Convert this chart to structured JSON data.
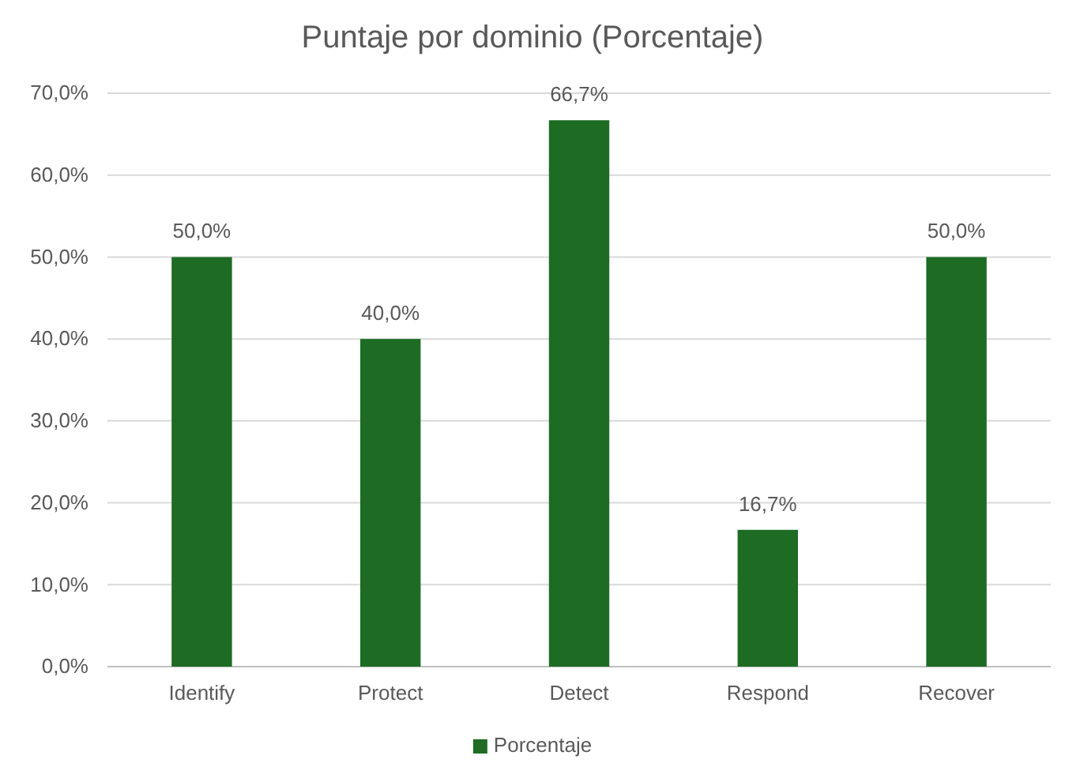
{
  "chart_data": {
    "type": "bar",
    "title": "Puntaje por dominio (Porcentaje)",
    "categories": [
      "Identify",
      "Protect",
      "Detect",
      "Respond",
      "Recover"
    ],
    "series": [
      {
        "name": "Porcentaje",
        "color": "#1e6b24",
        "values": [
          50,
          40,
          66.7,
          16.7,
          50
        ],
        "value_labels": [
          "50,0%",
          "40,0%",
          "66,7%",
          "16,7%",
          "50,0%"
        ]
      }
    ],
    "ylim": [
      0,
      70
    ],
    "yticks": [
      {
        "value": 0,
        "label": "0,0%"
      },
      {
        "value": 10,
        "label": "10,0%"
      },
      {
        "value": 20,
        "label": "20,0%"
      },
      {
        "value": 30,
        "label": "30,0%"
      },
      {
        "value": 40,
        "label": "40,0%"
      },
      {
        "value": 50,
        "label": "50,0%"
      },
      {
        "value": 60,
        "label": "60,0%"
      },
      {
        "value": 70,
        "label": "70,0%"
      }
    ],
    "grid": "y",
    "legend": "bottom"
  }
}
